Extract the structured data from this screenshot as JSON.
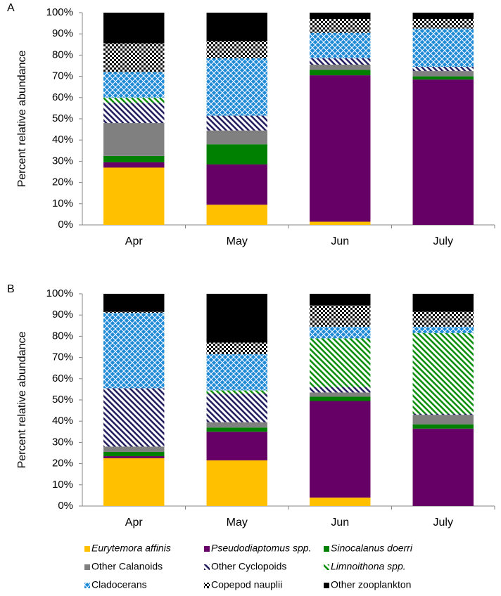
{
  "chart_data": [
    {
      "type": "bar",
      "stacked": true,
      "label": "A",
      "y_label": "Percent relative abundance",
      "categories": [
        "Apr",
        "May",
        "Jun",
        "July"
      ],
      "ylim": [
        0,
        100
      ],
      "yticks": [
        {
          "value": 0,
          "label": "0%"
        },
        {
          "value": 10,
          "label": "10%"
        },
        {
          "value": 20,
          "label": "20%"
        },
        {
          "value": 30,
          "label": "30%"
        },
        {
          "value": 40,
          "label": "40%"
        },
        {
          "value": 50,
          "label": "50%"
        },
        {
          "value": 60,
          "label": "60%"
        },
        {
          "value": 70,
          "label": "70%"
        },
        {
          "value": 80,
          "label": "80%"
        },
        {
          "value": 90,
          "label": "90%"
        },
        {
          "value": 100,
          "label": "100%"
        }
      ],
      "series": [
        {
          "name": "Eurytemora affinis",
          "color": "#ffc000",
          "pattern": "solid",
          "italic": true,
          "values": [
            27,
            9.5,
            1.5,
            0
          ]
        },
        {
          "name": "Pseudodiaptomus spp.",
          "color": "#660066",
          "pattern": "solid",
          "italic": true,
          "values": [
            2.5,
            19,
            69,
            68.5
          ]
        },
        {
          "name": "Sinocalanus doerri",
          "color": "#008000",
          "pattern": "solid",
          "italic": true,
          "values": [
            3,
            9.5,
            2.5,
            1.5
          ]
        },
        {
          "name": "Other Calanoids",
          "color": "#808080",
          "pattern": "solid",
          "italic": false,
          "values": [
            15.5,
            6.5,
            2.5,
            2.5
          ]
        },
        {
          "name": "Other Cyclopoids",
          "color": "#262262",
          "pattern": "stripes",
          "italic": false,
          "values": [
            9.5,
            7,
            3,
            2
          ]
        },
        {
          "name": "Limnoithona spp.",
          "color": "#109010",
          "pattern": "stripes",
          "italic": true,
          "values": [
            2.5,
            0,
            0,
            0
          ]
        },
        {
          "name": "Cladocerans",
          "color": "#1f8ad6",
          "pattern": "crosshatch",
          "italic": false,
          "values": [
            12,
            27,
            12,
            18
          ]
        },
        {
          "name": "Copepod nauplii",
          "color": "#000000",
          "pattern": "checker",
          "italic": false,
          "values": [
            13.5,
            8,
            6.5,
            4.5
          ]
        },
        {
          "name": "Other zooplankton",
          "color": "#000000",
          "pattern": "solid",
          "italic": false,
          "values": [
            14.5,
            13.5,
            3,
            3
          ]
        }
      ]
    },
    {
      "type": "bar",
      "stacked": true,
      "label": "B",
      "y_label": "Percent relative abundance",
      "categories": [
        "Apr",
        "May",
        "Jun",
        "July"
      ],
      "ylim": [
        0,
        100
      ],
      "yticks": [
        {
          "value": 0,
          "label": "0%"
        },
        {
          "value": 10,
          "label": "10%"
        },
        {
          "value": 20,
          "label": "20%"
        },
        {
          "value": 30,
          "label": "30%"
        },
        {
          "value": 40,
          "label": "40%"
        },
        {
          "value": 50,
          "label": "50%"
        },
        {
          "value": 60,
          "label": "60%"
        },
        {
          "value": 70,
          "label": "70%"
        },
        {
          "value": 80,
          "label": "80%"
        },
        {
          "value": 90,
          "label": "90%"
        },
        {
          "value": 100,
          "label": "100%"
        }
      ],
      "series": [
        {
          "name": "Eurytemora affinis",
          "color": "#ffc000",
          "pattern": "solid",
          "italic": true,
          "values": [
            22.5,
            21.5,
            4,
            0
          ]
        },
        {
          "name": "Pseudodiaptomus spp.",
          "color": "#660066",
          "pattern": "solid",
          "italic": true,
          "values": [
            1,
            13.5,
            45.5,
            36.5
          ]
        },
        {
          "name": "Sinocalanus doerri",
          "color": "#008000",
          "pattern": "solid",
          "italic": true,
          "values": [
            2,
            2,
            2,
            2
          ]
        },
        {
          "name": "Other Calanoids",
          "color": "#808080",
          "pattern": "solid",
          "italic": false,
          "values": [
            2.5,
            2.5,
            2,
            4.5
          ]
        },
        {
          "name": "Other Cyclopoids",
          "color": "#262262",
          "pattern": "stripes",
          "italic": false,
          "values": [
            27.5,
            13.5,
            2.5,
            0.5
          ]
        },
        {
          "name": "Limnoithona spp.",
          "color": "#109010",
          "pattern": "stripes",
          "italic": true,
          "values": [
            0,
            1.5,
            23,
            38
          ]
        },
        {
          "name": "Cladocerans",
          "color": "#1f8ad6",
          "pattern": "crosshatch",
          "italic": false,
          "values": [
            35.5,
            17,
            5.5,
            3
          ]
        },
        {
          "name": "Copepod nauplii",
          "color": "#000000",
          "pattern": "checker",
          "italic": false,
          "values": [
            0.5,
            5.5,
            10,
            7
          ]
        },
        {
          "name": "Other zooplankton",
          "color": "#000000",
          "pattern": "solid",
          "italic": false,
          "values": [
            8.5,
            23,
            5.5,
            8.5
          ]
        }
      ]
    }
  ]
}
